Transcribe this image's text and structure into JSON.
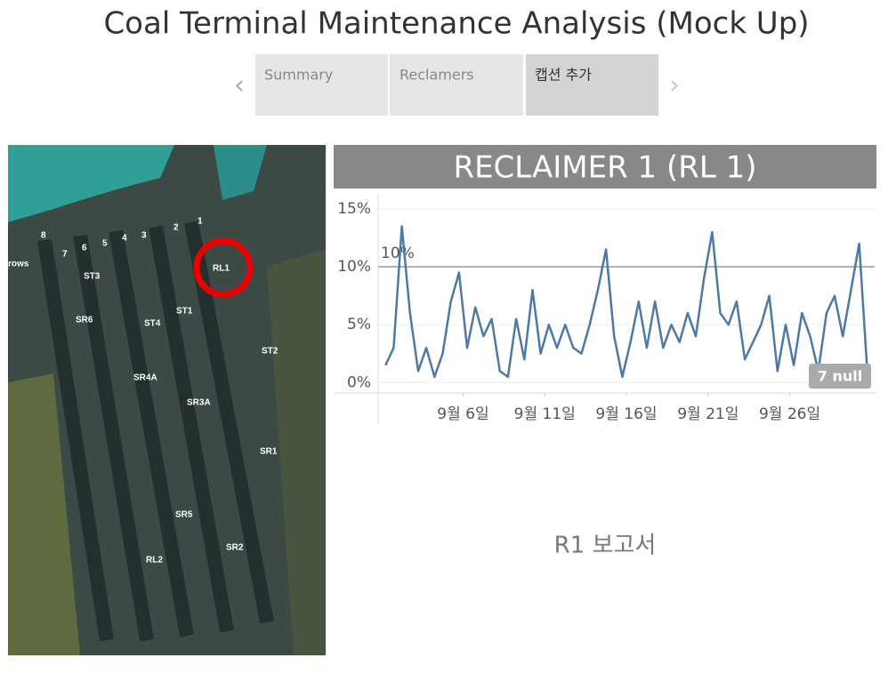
{
  "header": {
    "title": "Coal Terminal Maintenance Analysis (Mock Up)"
  },
  "tabs": [
    "Summary",
    "Reclamers",
    "캡션 추가"
  ],
  "map": {
    "labels": [
      "rows",
      "8",
      "7",
      "6",
      "5",
      "4",
      "3",
      "2",
      "1",
      "RL1",
      "ST3",
      "SR6",
      "ST4",
      "ST1",
      "ST2",
      "SR4A",
      "SR3A",
      "SR1",
      "SR5",
      "SR2",
      "RL2"
    ]
  },
  "chart_data": {
    "type": "line",
    "title": "RECLAIMER 1 (RL 1)",
    "color": "#4e79a7",
    "x": [
      1.25,
      1.75,
      2.25,
      2.75,
      3.25,
      3.75,
      4.25,
      4.75,
      5.25,
      5.75,
      6.25,
      6.75,
      7.25,
      7.75,
      8.25,
      8.75,
      9.25,
      9.75,
      10.25,
      10.75,
      11.25,
      11.75,
      12.25,
      12.75,
      13.25,
      13.75,
      14.25,
      14.75,
      15.25,
      15.75,
      16.25,
      16.75,
      17.25,
      17.75,
      18.25,
      18.75,
      19.25,
      19.75,
      20.25,
      20.75,
      21.25,
      21.75,
      22.25,
      22.75,
      23.25,
      23.75,
      24.25,
      24.75,
      25.25,
      25.75,
      26.25,
      26.75,
      27.25,
      27.75,
      28.25,
      28.75,
      29.25,
      29.75,
      30.25,
      30.75
    ],
    "values": [
      1.5,
      3,
      13.5,
      6,
      1,
      3,
      0.5,
      2.5,
      7,
      9.5,
      3,
      6.5,
      4,
      5.5,
      1,
      0.5,
      5.5,
      2,
      8,
      2.5,
      5,
      3,
      5,
      3,
      2.5,
      5,
      8,
      11.5,
      4,
      0.5,
      3.5,
      7,
      3,
      7,
      3,
      5,
      3.5,
      6,
      4,
      9,
      13,
      6,
      5,
      7,
      2,
      3.5,
      5,
      7.5,
      1,
      5,
      1.5,
      6,
      4,
      1,
      6,
      7.5,
      4,
      8,
      12,
      1
    ],
    "xlim": [
      0.8,
      31.2
    ],
    "xticks": [
      {
        "value": 6,
        "label": "9월 6일"
      },
      {
        "value": 11,
        "label": "9월 11일"
      },
      {
        "value": 16,
        "label": "9월 16일"
      },
      {
        "value": 21,
        "label": "9월 21일"
      },
      {
        "value": 26,
        "label": "9월 26일"
      }
    ],
    "ylim": [
      -0.9,
      16.3
    ],
    "yticks": [
      {
        "value": 0,
        "label": "0%"
      },
      {
        "value": 5,
        "label": "5%"
      },
      {
        "value": 10,
        "label": "10%"
      },
      {
        "value": 15,
        "label": "15%"
      }
    ],
    "grid": true,
    "reference_line": {
      "value": 10,
      "label": "10%"
    },
    "null_indicator": "7 null"
  },
  "footer": "R1 보고서"
}
